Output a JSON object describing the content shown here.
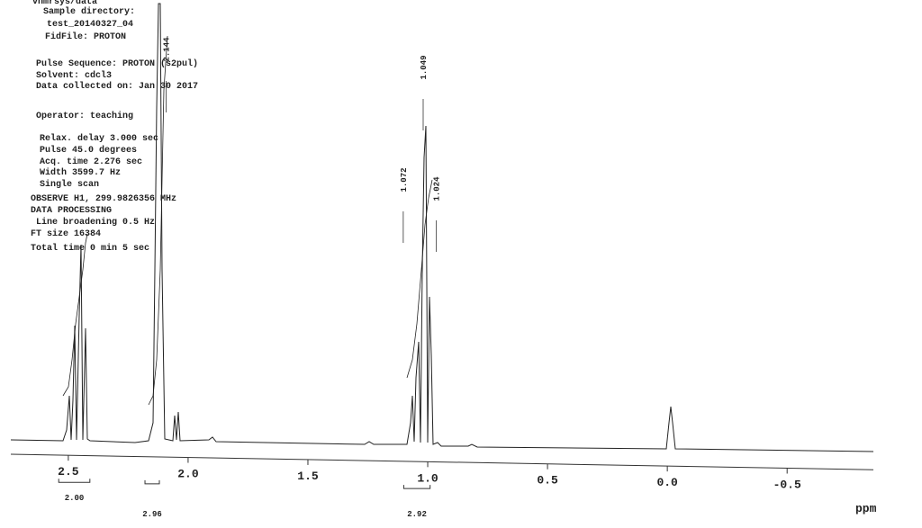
{
  "chart_data": {
    "type": "nmr",
    "header_lines": [
      "vnmrsys/data",
      "Sample directory:",
      "test_20140327_04",
      "FidFile: PROTON",
      "Pulse Sequence: PROTON (s2pul)",
      "Solvent: cdcl3",
      "Data collected on: Jan 30 2017",
      "Operator: teaching",
      "Relax. delay 3.000 sec",
      "Pulse 45.0 degrees",
      "Acq. time 2.276 sec",
      "Width 3599.7 Hz",
      "Single scan",
      "OBSERVE   H1, 299.9826356 MHz",
      "DATA PROCESSING",
      "Line broadening 0.5 Hz",
      "FT size 16384",
      "Total time 0 min 5 sec"
    ],
    "x_label": "ppm",
    "xlim": [
      2.74,
      -0.86
    ],
    "xticks": [
      {
        "value": 2.5,
        "label": "2.5"
      },
      {
        "value": 2,
        "label": "2.0"
      },
      {
        "value": 1.5,
        "label": "1.5"
      },
      {
        "value": 1,
        "label": "1.0"
      },
      {
        "value": 0.5,
        "label": "0.5"
      },
      {
        "value": 0,
        "label": "0.0"
      },
      {
        "value": -0.5,
        "label": "-0.5"
      }
    ],
    "peak_labels": [
      2.144,
      1.072,
      1.049,
      1.024
    ],
    "integrals": {
      "ranges": [
        [
          2.54,
          2.41
        ],
        [
          2.18,
          2.12
        ],
        [
          1.1,
          0.99
        ]
      ],
      "values": [
        2,
        2.96,
        2.92
      ],
      "value_labels": [
        "2.00",
        "2.96",
        "2.92"
      ]
    }
  }
}
